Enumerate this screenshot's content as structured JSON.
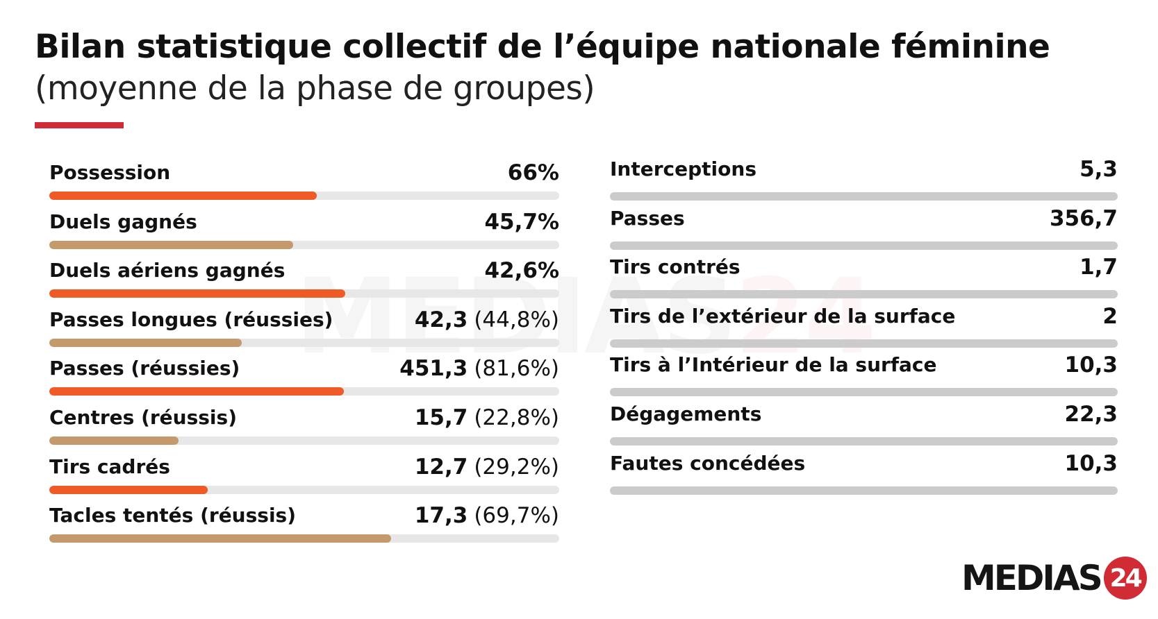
{
  "header": {
    "title": "Bilan statistique collectif de l’équipe nationale féminine",
    "subtitle": "(moyenne de la phase de groupes)"
  },
  "colors": {
    "accent_red": "#d12b35",
    "bar_orange": "#f05a26",
    "bar_tan": "#c49a6c",
    "track_light": "#e7e7e7",
    "track_grey": "#cbcbcb"
  },
  "brand": {
    "logo_text": "MEDIAS",
    "logo_number": "24"
  },
  "chart_data": [
    {
      "type": "bar",
      "orientation": "horizontal",
      "categories": [
        "Possession",
        "Duels gagnés",
        "Duels aériens gagnés",
        "Passes longues (réussies)",
        "Passes (réussies)",
        "Centres (réussis)",
        "Tirs cadrés",
        "Tacles tentés (réussis)"
      ],
      "values": [
        66,
        45.7,
        42.6,
        42.3,
        451.3,
        15.7,
        12.7,
        17.3
      ],
      "value_labels": [
        "66%",
        "45,7%",
        "42,6%",
        "42,3",
        "451,3",
        "15,7",
        "12,7",
        "17,3"
      ],
      "secondary_labels": [
        "",
        "",
        "",
        "(44,8%)",
        "(81,6%)",
        "(22,8%)",
        "(29,2%)",
        "(69,7%)"
      ],
      "bar_fill_percent": [
        52.5,
        47.8,
        58,
        37.8,
        57.7,
        25.3,
        31,
        67
      ],
      "bar_colors": [
        "#f05a26",
        "#c49a6c",
        "#f05a26",
        "#c49a6c",
        "#f05a26",
        "#c49a6c",
        "#f05a26",
        "#c49a6c"
      ]
    },
    {
      "type": "bar",
      "orientation": "horizontal",
      "categories": [
        "Interceptions",
        "Passes",
        "Tirs contrés",
        "Tirs de l’extérieur de la surface",
        "Tirs à l’Intérieur de la surface",
        "Dégagements",
        "Fautes concédées"
      ],
      "values": [
        5.3,
        356.7,
        1.7,
        2,
        10.3,
        22.3,
        10.3
      ],
      "value_labels": [
        "5,3",
        "356,7",
        "1,7",
        "2",
        "10,3",
        "22,3",
        "10,3"
      ],
      "secondary_labels": [
        "",
        "",
        "",
        "",
        "",
        "",
        ""
      ],
      "bar_fill_percent": [
        0,
        0,
        0,
        0,
        0,
        0,
        0
      ],
      "bar_colors": [
        "#cbcbcb",
        "#cbcbcb",
        "#cbcbcb",
        "#cbcbcb",
        "#cbcbcb",
        "#cbcbcb",
        "#cbcbcb"
      ]
    }
  ]
}
